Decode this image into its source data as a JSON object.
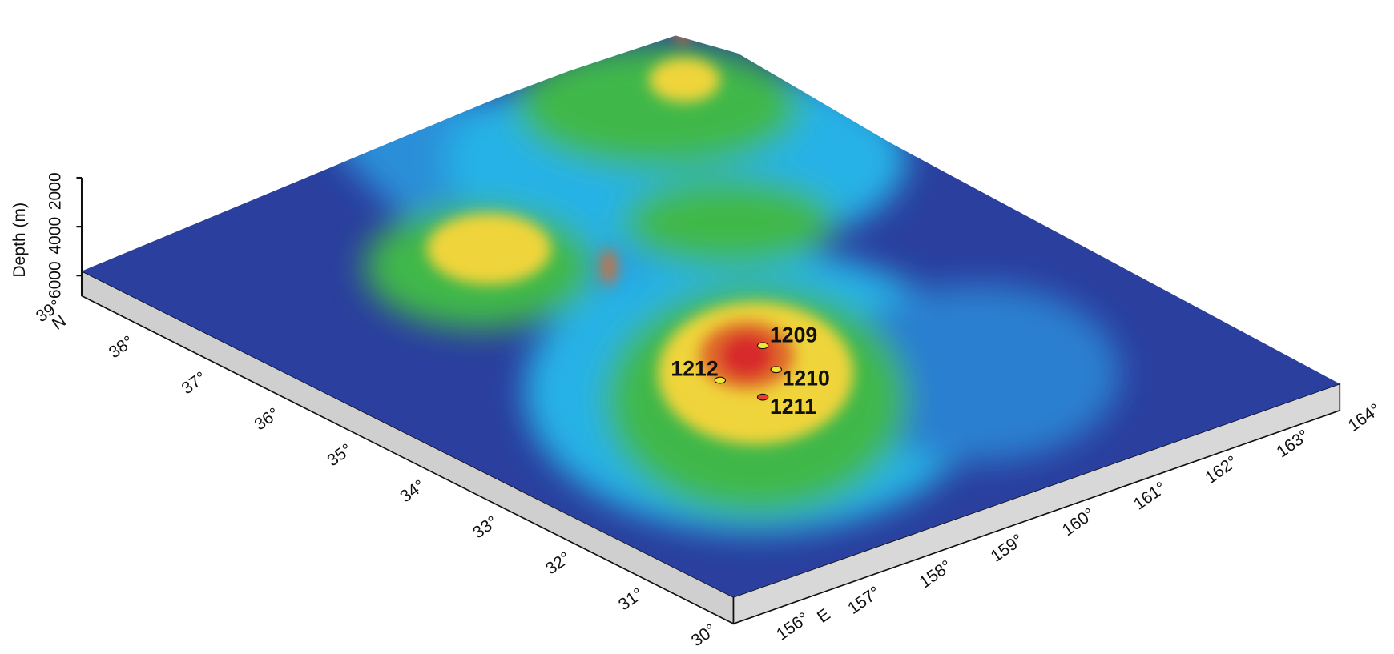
{
  "depth_axis": {
    "label": "Depth (m)",
    "ticks": [
      "2000",
      "4000",
      "6000"
    ]
  },
  "latitude_labels": [
    "30°",
    "31°",
    "32°",
    "33°",
    "34°",
    "35°",
    "36°",
    "37°",
    "38°",
    "39°"
  ],
  "latitude_hemisphere": "N",
  "longitude_labels": [
    "156°",
    "157°",
    "158°",
    "159°",
    "160°",
    "161°",
    "162°",
    "163°",
    "164°"
  ],
  "longitude_hemisphere": "E",
  "sites": [
    {
      "label": "1209",
      "color": "#f2e531"
    },
    {
      "label": "1210",
      "color": "#f2e531"
    },
    {
      "label": "1211",
      "color": "#e8402a"
    },
    {
      "label": "1212",
      "color": "#f2e531"
    }
  ]
}
